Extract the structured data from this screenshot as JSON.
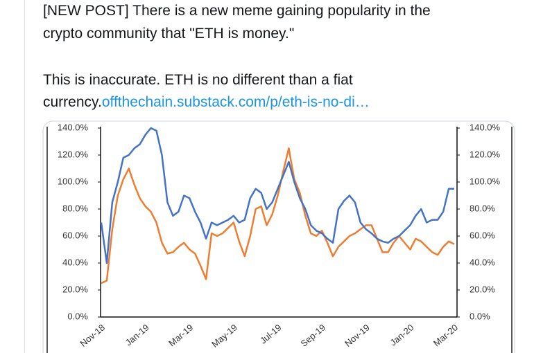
{
  "tweet": {
    "text_lines": [
      "[NEW POST] There is a new meme gaining popularity in the",
      "crypto community that \"ETH is money.\"",
      "This is inaccurate. ETH is no different than a fiat",
      "currency."
    ],
    "link": "offthechain.substack.com/p/eth-is-no-di…"
  },
  "chart_data": {
    "type": "line",
    "categories": [
      "Nov-18",
      null,
      null,
      null,
      null,
      null,
      null,
      null,
      "Jan-19",
      null,
      null,
      null,
      null,
      null,
      null,
      null,
      "Mar-19",
      null,
      null,
      null,
      null,
      null,
      null,
      null,
      "May-19",
      null,
      null,
      null,
      null,
      null,
      null,
      null,
      "Jul-19",
      null,
      null,
      null,
      null,
      null,
      null,
      null,
      "Sep-19",
      null,
      null,
      null,
      null,
      null,
      null,
      null,
      "Nov-19",
      null,
      null,
      null,
      null,
      null,
      null,
      null,
      "Jan-20",
      null,
      null,
      null,
      null,
      null,
      null,
      null,
      "Mar-20"
    ],
    "series": [
      {
        "color": "#4472c4",
        "values": [
          70,
          40,
          85,
          100,
          118,
          120,
          125,
          128,
          135,
          140,
          138,
          120,
          85,
          75,
          78,
          90,
          88,
          78,
          70,
          58,
          70,
          68,
          70,
          72,
          75,
          70,
          72,
          88,
          95,
          92,
          80,
          85,
          95,
          105,
          115,
          100,
          88,
          80,
          68,
          64,
          62,
          58,
          55,
          80,
          86,
          90,
          85,
          70,
          65,
          62,
          58,
          56,
          55,
          58,
          60,
          64,
          68,
          75,
          80,
          70,
          72,
          72,
          78,
          95,
          95
        ]
      },
      {
        "color": "#ed7d31",
        "values": [
          25,
          27,
          65,
          90,
          102,
          110,
          98,
          88,
          82,
          78,
          70,
          55,
          47,
          48,
          52,
          55,
          50,
          47,
          38,
          28,
          62,
          60,
          62,
          66,
          70,
          56,
          45,
          60,
          80,
          82,
          68,
          76,
          90,
          108,
          125,
          102,
          92,
          75,
          62,
          60,
          64,
          55,
          45,
          52,
          56,
          60,
          62,
          65,
          68,
          68,
          58,
          48,
          48,
          55,
          60,
          55,
          50,
          58,
          56,
          52,
          48,
          46,
          52,
          56,
          54
        ]
      }
    ],
    "ylim": [
      0,
      140
    ],
    "yticks": [
      {
        "value": 0,
        "label": "0.0%"
      },
      {
        "value": 20,
        "label": "20.0%"
      },
      {
        "value": 40,
        "label": "40.0%"
      },
      {
        "value": 60,
        "label": "60.0%"
      },
      {
        "value": 80,
        "label": "80.0%"
      },
      {
        "value": 100,
        "label": "100.0%"
      },
      {
        "value": 120,
        "label": "120.0%"
      },
      {
        "value": 140,
        "label": "140.0%"
      }
    ],
    "y2lim": [
      0,
      140
    ],
    "y2ticks": [
      {
        "value": 0,
        "label": "0.0%"
      },
      {
        "value": 20,
        "label": "20.0%"
      },
      {
        "value": 40,
        "label": "40.0%"
      },
      {
        "value": 60,
        "label": "60.0%"
      },
      {
        "value": 80,
        "label": "80.0%"
      },
      {
        "value": 100,
        "label": "100.0%"
      },
      {
        "value": 120,
        "label": "120.0%"
      },
      {
        "value": 140,
        "label": "140.0%"
      }
    ]
  }
}
